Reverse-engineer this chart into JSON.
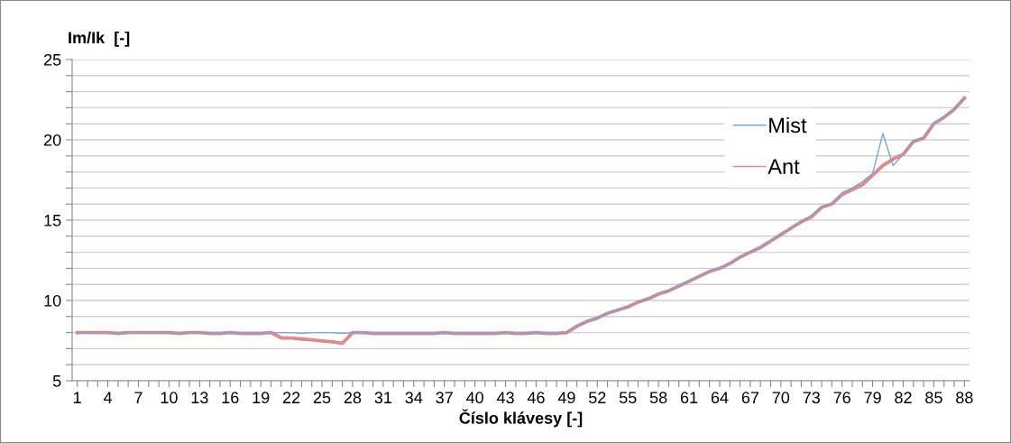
{
  "chart_data": {
    "type": "line",
    "xlabel": "Číslo klávesy [-]",
    "ylabel": "Im/Ik  [-]",
    "categories": [
      "1",
      null,
      null,
      "4",
      null,
      null,
      "7",
      null,
      null,
      "10",
      null,
      null,
      "13",
      null,
      null,
      "16",
      null,
      null,
      "19",
      null,
      null,
      "22",
      null,
      null,
      "25",
      null,
      null,
      "28",
      null,
      null,
      "31",
      null,
      null,
      "34",
      null,
      null,
      "37",
      null,
      null,
      "40",
      null,
      null,
      "43",
      null,
      null,
      "46",
      null,
      null,
      "49",
      null,
      null,
      "52",
      null,
      null,
      "55",
      null,
      null,
      "58",
      null,
      null,
      "61",
      null,
      null,
      "64",
      null,
      null,
      "67",
      null,
      null,
      "70",
      null,
      null,
      "73",
      null,
      null,
      "76",
      null,
      null,
      "79",
      null,
      null,
      "82",
      null,
      null,
      "85",
      null,
      null,
      "88"
    ],
    "series": [
      {
        "name": "Mist",
        "color": "#7ba3d6",
        "values": [
          8,
          8,
          8,
          8,
          7.95,
          8,
          8,
          8,
          8,
          8,
          7.95,
          8,
          8,
          7.95,
          7.95,
          8,
          7.95,
          7.95,
          7.95,
          8,
          8,
          8,
          7.95,
          8,
          8,
          8,
          7.95,
          8,
          8,
          7.95,
          7.95,
          7.95,
          7.95,
          7.95,
          7.95,
          7.95,
          8,
          7.95,
          7.95,
          7.95,
          7.95,
          7.95,
          8,
          7.95,
          7.95,
          8,
          7.95,
          7.95,
          8,
          8.4,
          8.7,
          8.9,
          9.2,
          9.4,
          9.6,
          9.9,
          10.1,
          10.4,
          10.6,
          10.9,
          11.2,
          11.5,
          11.8,
          12.0,
          12.3,
          12.7,
          13.0,
          13.3,
          13.7,
          14.1,
          14.5,
          14.9,
          15.3,
          15.8,
          16.0,
          16.7,
          17.0,
          17.4,
          17.9,
          20.4,
          18.4,
          19.1,
          19.9,
          20.1,
          21.0,
          21.4,
          21.9,
          22.6
        ]
      },
      {
        "name": "Ant",
        "color": "#e08a8a",
        "values": [
          8,
          8,
          8,
          8,
          7.95,
          8,
          8,
          8,
          8,
          8,
          7.95,
          8,
          8,
          7.95,
          7.95,
          8,
          7.95,
          7.95,
          7.95,
          8,
          7.67,
          7.66,
          7.6,
          7.55,
          7.48,
          7.42,
          7.33,
          8,
          8,
          7.95,
          7.95,
          7.95,
          7.95,
          7.95,
          7.95,
          7.95,
          8,
          7.95,
          7.95,
          7.95,
          7.95,
          7.95,
          8,
          7.95,
          7.95,
          8,
          7.95,
          7.95,
          8,
          8.4,
          8.7,
          8.9,
          9.2,
          9.4,
          9.6,
          9.9,
          10.1,
          10.4,
          10.6,
          10.9,
          11.2,
          11.5,
          11.8,
          12.0,
          12.3,
          12.7,
          13.0,
          13.3,
          13.7,
          14.1,
          14.5,
          14.9,
          15.2,
          15.8,
          16.0,
          16.6,
          16.9,
          17.2,
          17.8,
          18.4,
          18.8,
          19.1,
          19.9,
          20.1,
          21.0,
          21.4,
          21.9,
          22.6
        ]
      }
    ],
    "ylim": [
      5,
      25
    ],
    "yticks": [
      5,
      {
        "value": 6,
        "label": null
      },
      {
        "value": 7,
        "label": null
      },
      {
        "value": 8,
        "label": null
      },
      {
        "value": 9,
        "label": null
      },
      10,
      {
        "value": 11,
        "label": null
      },
      {
        "value": 12,
        "label": null
      },
      {
        "value": 13,
        "label": null
      },
      {
        "value": 14,
        "label": null
      },
      15,
      {
        "value": 16,
        "label": null
      },
      {
        "value": 17,
        "label": null
      },
      {
        "value": 18,
        "label": null
      },
      {
        "value": 19,
        "label": null
      },
      20,
      {
        "value": 21,
        "label": null
      },
      {
        "value": 22,
        "label": null
      },
      {
        "value": 23,
        "label": null
      },
      {
        "value": 24,
        "label": null
      },
      25
    ],
    "grid": "y",
    "legend": "top right",
    "marker": "none",
    "line_style": "solid"
  }
}
